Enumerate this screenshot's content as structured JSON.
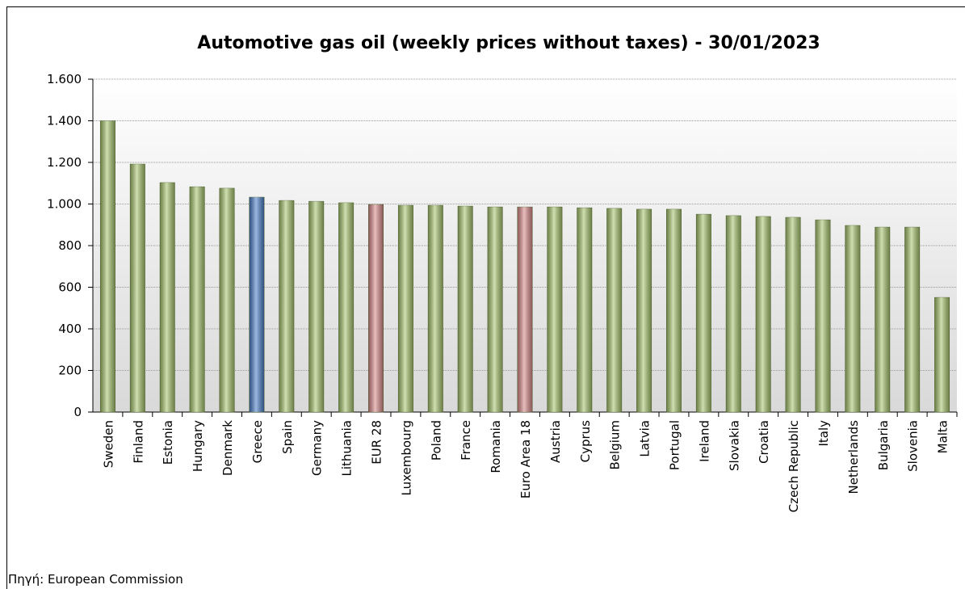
{
  "chart_data": {
    "type": "bar",
    "title": "Automotive gas oil (weekly prices without taxes) - 30/01/2023",
    "note": "Πηγή: European Commission",
    "categories": [
      "Sweden",
      "Finland",
      "Estonia",
      "Hungary",
      "Denmark",
      "Greece",
      "Spain",
      "Germany",
      "Lithuania",
      "EUR 28",
      "Luxembourg",
      "Poland",
      "France",
      "Romania",
      "Euro Area 18",
      "Austria",
      "Cyprus",
      "Belgium",
      "Latvia",
      "Portugal",
      "Ireland",
      "Slovakia",
      "Croatia",
      "Czech Republic",
      "Italy",
      "Netherlands",
      "Bulgaria",
      "Slovenia",
      "Malta"
    ],
    "values": [
      1400,
      1192,
      1103,
      1083,
      1076,
      1033,
      1017,
      1013,
      1006,
      998,
      994,
      994,
      990,
      986,
      986,
      986,
      982,
      979,
      975,
      975,
      951,
      944,
      940,
      936,
      924,
      897,
      889,
      889,
      551
    ],
    "colors": [
      "#a9c66f",
      "#a9c66f",
      "#a9c66f",
      "#a9c66f",
      "#a9c66f",
      "#4a7fc9",
      "#a9c66f",
      "#a9c66f",
      "#a9c66f",
      "#d98a8a",
      "#a9c66f",
      "#a9c66f",
      "#a9c66f",
      "#a9c66f",
      "#d98a8a",
      "#a9c66f",
      "#a9c66f",
      "#a9c66f",
      "#a9c66f",
      "#a9c66f",
      "#a9c66f",
      "#a9c66f",
      "#a9c66f",
      "#a9c66f",
      "#a9c66f",
      "#a9c66f",
      "#a9c66f",
      "#a9c66f",
      "#a9c66f"
    ],
    "ylim": [
      0,
      1600
    ],
    "yticks": [
      0,
      200,
      400,
      600,
      800,
      {
        "value": 1000,
        "label": "1.000"
      },
      {
        "value": 1200,
        "label": "1.200"
      },
      {
        "value": 1400,
        "label": "1.400"
      },
      {
        "value": 1600,
        "label": "1.600"
      }
    ],
    "grid": true
  }
}
